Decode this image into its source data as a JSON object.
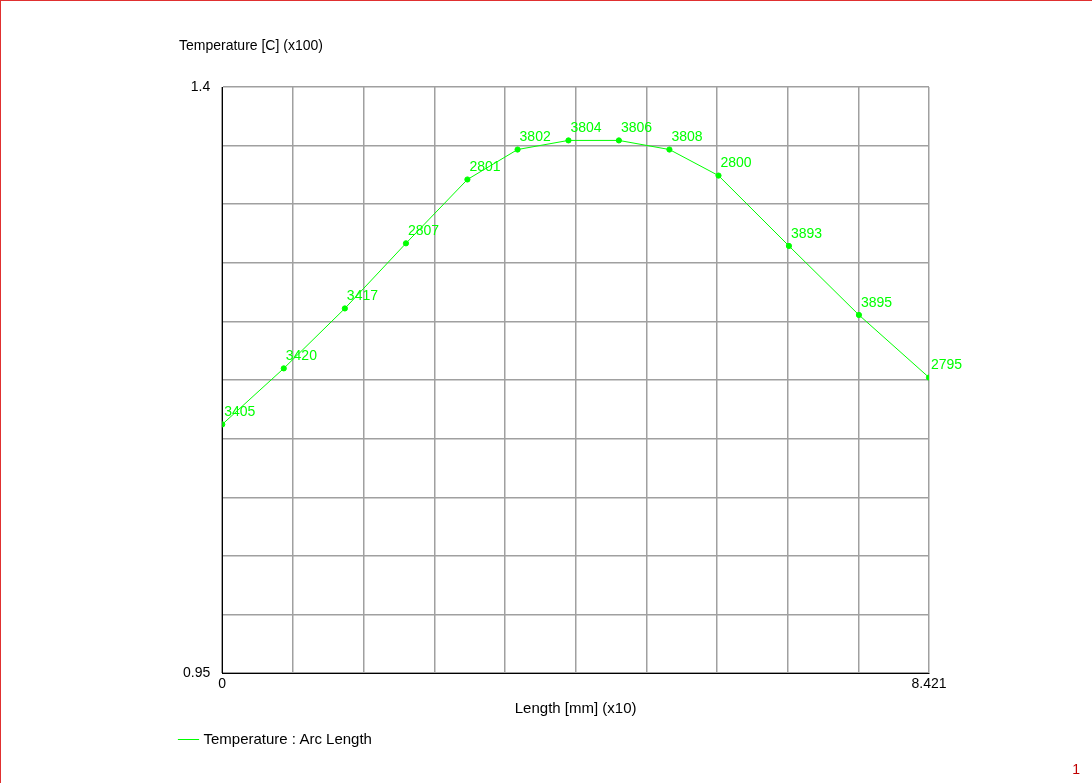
{
  "chart_data": {
    "type": "line",
    "ylabel": "Temperature [C] (x100)",
    "xlabel": "Length [mm] (x10)",
    "x": [
      0,
      0.733,
      1.461,
      2.189,
      2.921,
      3.519,
      4.125,
      4.726,
      5.328,
      5.913,
      6.752,
      7.586,
      8.421
    ],
    "series": [
      {
        "name": "Temperature : Arc Length",
        "color": "#00ff00",
        "values": [
          1.141,
          1.184,
          1.23,
          1.28,
          1.329,
          1.352,
          1.359,
          1.359,
          1.352,
          1.332,
          1.278,
          1.225,
          1.177
        ]
      }
    ],
    "xlim": [
      0,
      8.421
    ],
    "xticks": [
      0,
      {
        "value": 0.8421,
        "label": null
      },
      {
        "value": 1.6842,
        "label": null
      },
      {
        "value": 2.5263,
        "label": null
      },
      {
        "value": 3.3684,
        "label": null
      },
      {
        "value": 4.2105,
        "label": null
      },
      {
        "value": 5.0526,
        "label": null
      },
      {
        "value": 5.8947,
        "label": null
      },
      {
        "value": 6.7368,
        "label": null
      },
      {
        "value": 7.5789,
        "label": null
      },
      8.421
    ],
    "ylim": [
      0.95,
      1.4
    ],
    "yticks": [
      0.95,
      {
        "value": 0.995,
        "label": null
      },
      {
        "value": 1.04,
        "label": null
      },
      {
        "value": 1.085,
        "label": null
      },
      {
        "value": 1.13,
        "label": null
      },
      {
        "value": 1.175,
        "label": null
      },
      {
        "value": 1.22,
        "label": null
      },
      {
        "value": 1.265,
        "label": null
      },
      {
        "value": 1.31,
        "label": null
      },
      {
        "value": 1.355,
        "label": null
      },
      1.4
    ],
    "grid": true,
    "legend": "bottom left",
    "marker": "circle",
    "line_style": "solid",
    "annotations": [
      {
        "text": "3405",
        "x": 0,
        "y": 1.141
      },
      {
        "text": "3420",
        "x": 0.733,
        "y": 1.184
      },
      {
        "text": "3417",
        "x": 1.461,
        "y": 1.23
      },
      {
        "text": "2807",
        "x": 2.189,
        "y": 1.28
      },
      {
        "text": "2801",
        "x": 2.921,
        "y": 1.329
      },
      {
        "text": "3802",
        "x": 3.519,
        "y": 1.352
      },
      {
        "text": "3804",
        "x": 4.125,
        "y": 1.359
      },
      {
        "text": "3806",
        "x": 4.726,
        "y": 1.359
      },
      {
        "text": "3808",
        "x": 5.328,
        "y": 1.352
      },
      {
        "text": "2800",
        "x": 5.913,
        "y": 1.332
      },
      {
        "text": "3893",
        "x": 6.752,
        "y": 1.278
      },
      {
        "text": "3895",
        "x": 7.586,
        "y": 1.225
      },
      {
        "text": "2795",
        "x": 8.421,
        "y": 1.177
      },
      "1"
    ]
  }
}
